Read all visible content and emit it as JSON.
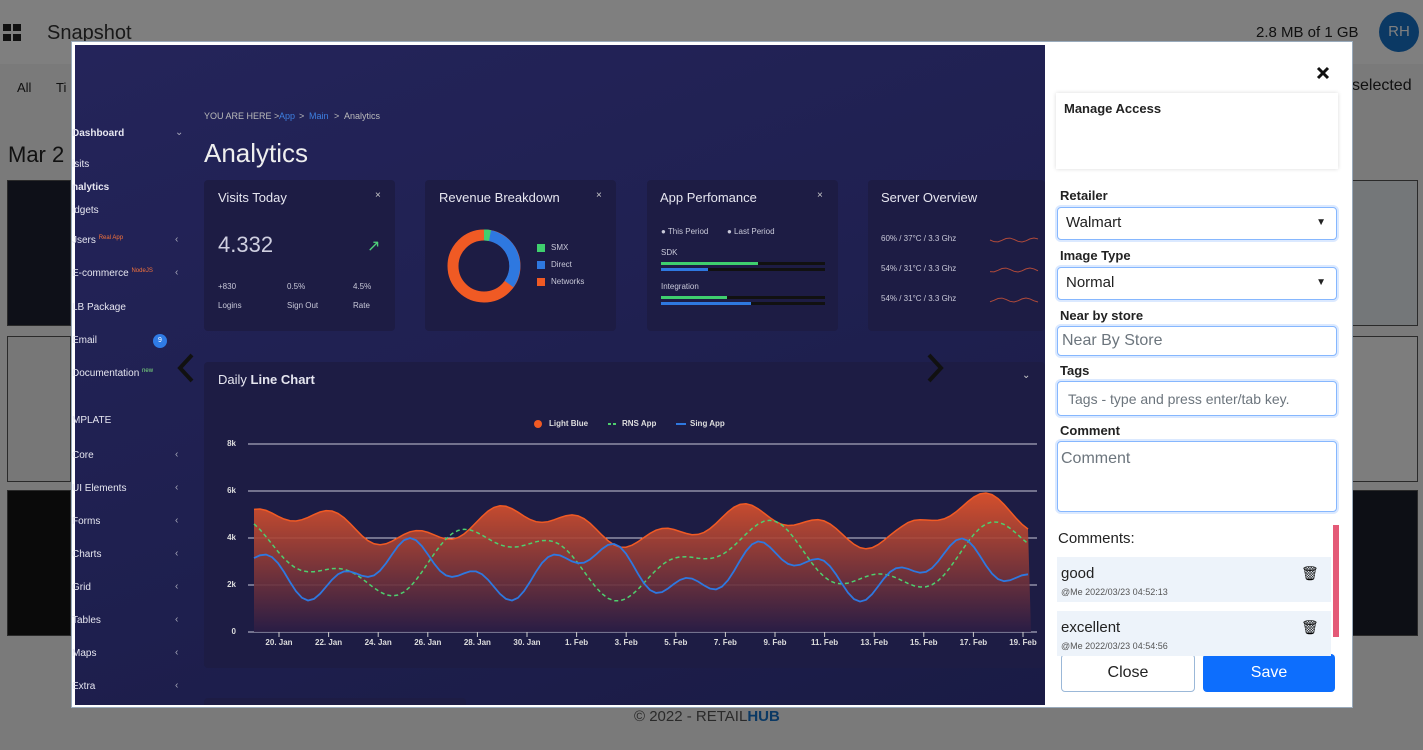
{
  "app": {
    "title": "Snapshot",
    "storage": "2.8 MB of 1 GB",
    "avatar": "RH",
    "filters": [
      "All",
      "Ti"
    ],
    "selected": "selected",
    "date": "Mar 2",
    "footer": {
      "prefix": "© 2022 - RETAIL",
      "brand": "HUB"
    }
  },
  "preview": {
    "sidebar": [
      {
        "label": "Dashboard"
      },
      {
        "label": "isits"
      },
      {
        "label": "nalytics"
      },
      {
        "label": "idgets"
      },
      {
        "label": "Jsers",
        "badge": "Real App"
      },
      {
        "label": "E-commerce",
        "badge": "NodeJS"
      },
      {
        "label": "LB Package"
      },
      {
        "label": "Email",
        "badge": "9"
      },
      {
        "label": "Documentation",
        "badge": "new"
      },
      {
        "label": "MPLATE"
      },
      {
        "label": "Core"
      },
      {
        "label": "UI Elements"
      },
      {
        "label": "Forms"
      },
      {
        "label": "Charts"
      },
      {
        "label": "Grid"
      },
      {
        "label": "Tables"
      },
      {
        "label": "Maps"
      },
      {
        "label": "Extra"
      }
    ],
    "breadcrumb": [
      "YOU ARE HERE >",
      "App",
      ">",
      "Main",
      ">",
      "Analytics"
    ],
    "heading": "Analytics",
    "visits": {
      "title": "Visits Today",
      "value": "4.332",
      "stats": [
        {
          "value": "+830",
          "label": "Logins"
        },
        {
          "value": "0.5%",
          "label": "Sign Out"
        },
        {
          "value": "4.5%",
          "label": "Rate"
        }
      ]
    },
    "revenue": {
      "title": "Revenue Breakdown",
      "legend": [
        "SMX",
        "Direct",
        "Networks"
      ]
    },
    "performance": {
      "title": "App Perfomance",
      "legend": [
        "This Period",
        "Last Period"
      ],
      "rows": [
        "SDK",
        "Integration"
      ]
    },
    "server": {
      "title": "Server Overview",
      "rows": [
        "60% / 37°C / 3.3 Ghz",
        "54% / 31°C / 3.3 Ghz",
        "54% / 31°C / 3.3 Ghz"
      ]
    },
    "chart": {
      "title": [
        "Daily",
        "Line Chart"
      ],
      "legend": [
        "Light Blue",
        "RNS App",
        "Sing App"
      ],
      "yLabels": [
        "8k",
        "6k",
        "4k",
        "2k",
        "0"
      ],
      "xLabels": [
        "20. Jan",
        "22. Jan",
        "24. Jan",
        "26. Jan",
        "28. Jan",
        "30. Jan",
        "1. Feb",
        "3. Feb",
        "5. Feb",
        "7. Feb",
        "9. Feb",
        "11. Feb",
        "13. Feb",
        "15. Feb",
        "17. Feb",
        "19. Feb"
      ]
    }
  },
  "panel": {
    "manage": "Manage Access",
    "fields": [
      {
        "label": "Retailer",
        "value": "Walmart"
      },
      {
        "label": "Image Type",
        "value": "Normal"
      },
      {
        "label": "Near by store",
        "placeholder": "Near By Store"
      },
      {
        "label": "Tags",
        "placeholder": "Tags - type and press enter/tab key."
      },
      {
        "label": "Comment",
        "placeholder": "Comment"
      }
    ],
    "commentsTitle": "Comments:",
    "comments": [
      {
        "text": "good",
        "meta": "@Me 2022/03/23 04:52:13"
      },
      {
        "text": "excellent",
        "meta": "@Me 2022/03/23 04:54:56"
      }
    ],
    "buttons": {
      "close": "Close",
      "save": "Save"
    }
  }
}
